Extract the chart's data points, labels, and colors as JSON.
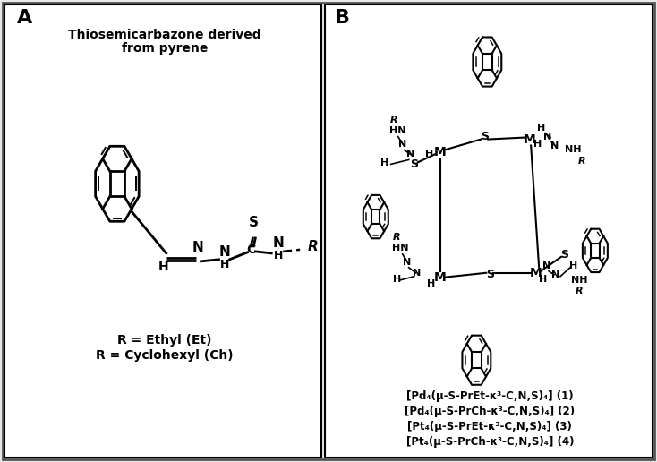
{
  "panel_A_label": "A",
  "panel_B_label": "B",
  "panel_A_title_line1": "Thiosemicarbazone derived",
  "panel_A_title_line2": "from pyrene",
  "panel_A_legend_line1": "R = Ethyl (Et)",
  "panel_A_legend_line2": "R = Cyclohexyl (Ch)",
  "compound_labels": [
    "[Pd₄(μ-S-PrEt-κ³-C,N,S)₄] (1)",
    "[Pd₄(μ-S-PrCh-κ³-C,N,S)₄] (2)",
    "[Pt₄(μ-S-PrEt-κ³-C,N,S)₄] (3)",
    "[Pt₄(μ-S-PrCh-κ³-C,N,S)₄] (4)"
  ],
  "bg_color": "#e8e8e8",
  "panel_bg": "#ffffff",
  "border_color": "#000000",
  "text_color": "#000000",
  "figsize": [
    7.34,
    5.16
  ],
  "dpi": 100
}
